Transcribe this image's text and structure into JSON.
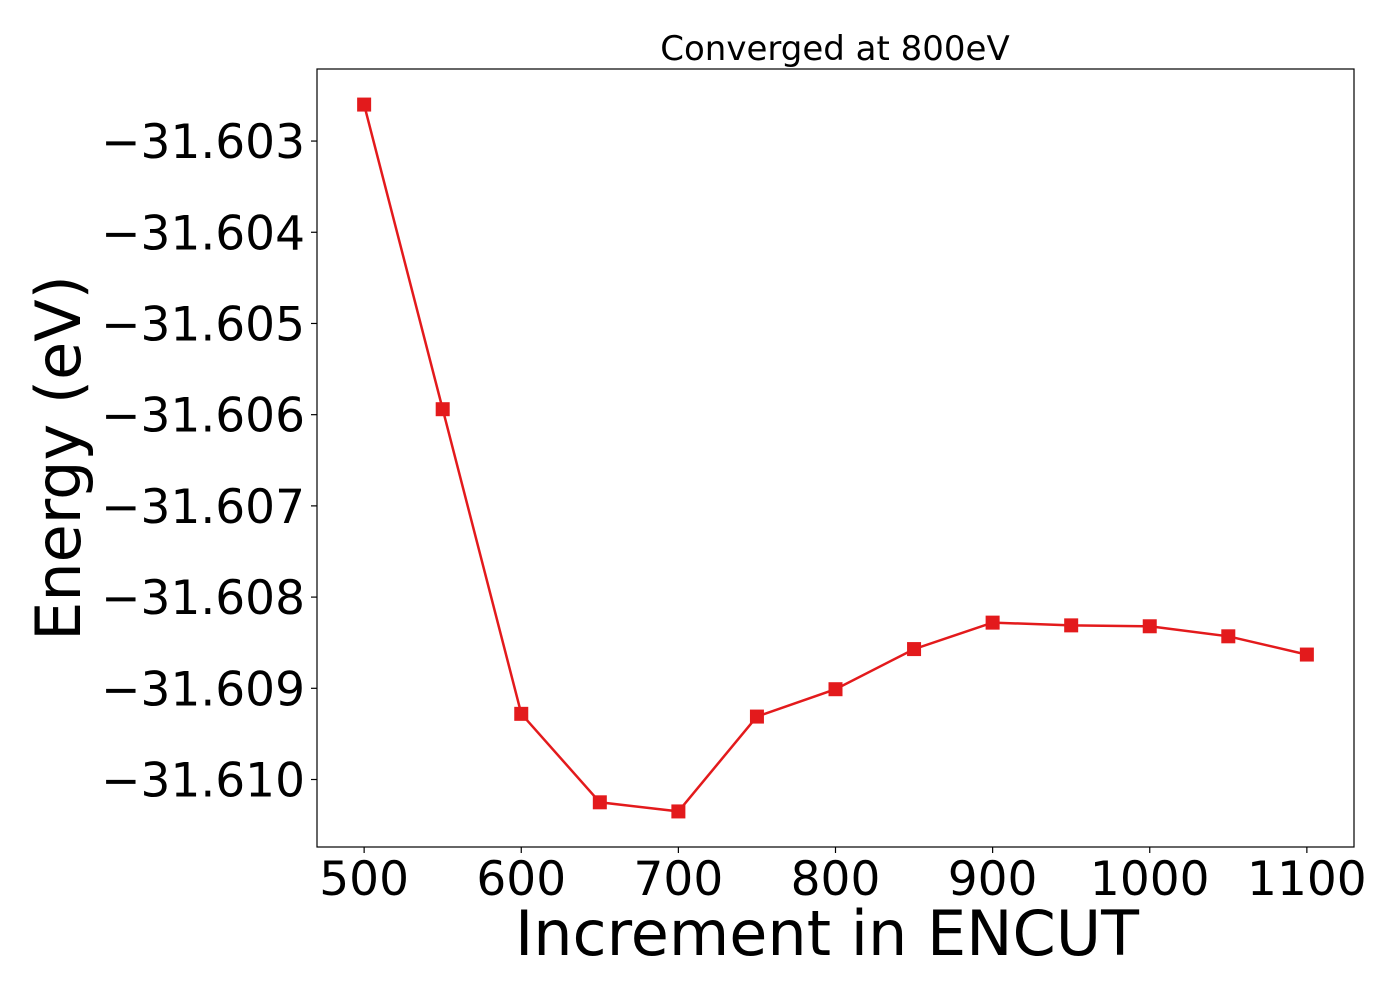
{
  "chart_data": {
    "type": "line",
    "title": "Converged at 800eV",
    "xlabel": "Increment in ENCUT",
    "ylabel": "Energy (eV)",
    "x": [
      500,
      550,
      600,
      650,
      700,
      750,
      800,
      850,
      900,
      950,
      1000,
      1050,
      1100
    ],
    "series": [
      {
        "values": [
          -31.6026,
          -31.60594,
          -31.60928,
          -31.61025,
          -31.61035,
          -31.60931,
          -31.60901,
          -31.60857,
          -31.60828,
          -31.60831,
          -31.60832,
          -31.60843,
          -31.60863
        ],
        "color": "#e31a1c",
        "marker": "square"
      }
    ],
    "xlim": [
      470,
      1130
    ],
    "ylim": [
      -31.61074,
      -31.60221
    ],
    "xticks": [
      500,
      600,
      700,
      800,
      900,
      1000,
      1100
    ],
    "xtick_labels": [
      "500",
      "600",
      "700",
      "800",
      "900",
      "1000",
      "1100"
    ],
    "yticks": [
      -31.603,
      -31.604,
      -31.605,
      -31.606,
      -31.607,
      -31.608,
      -31.609,
      -31.61
    ],
    "ytick_labels": [
      "−31.603",
      "−31.604",
      "−31.605",
      "−31.606",
      "−31.607",
      "−31.608",
      "−31.609",
      "−31.610"
    ],
    "grid": false,
    "legend": "none"
  }
}
